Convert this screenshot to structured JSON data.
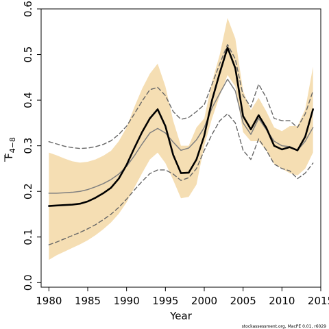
{
  "chart_data": {
    "type": "line",
    "xlabel": "Year",
    "ylabel": "F",
    "ylabel_subscript": "4−8",
    "xlim": [
      1979,
      2015
    ],
    "ylim": [
      -0.01,
      0.6
    ],
    "x_ticks": [
      1980,
      1985,
      1990,
      1995,
      2000,
      2005,
      2010,
      2015
    ],
    "x_tick_labels": [
      "1980",
      "1985",
      "1990",
      "1995",
      "2000",
      "2005",
      "2010",
      "2015"
    ],
    "y_ticks": [
      0.0,
      0.1,
      0.2,
      0.3,
      0.4,
      0.5,
      0.6
    ],
    "y_tick_labels": [
      "0.0",
      "0.1",
      "0.2",
      "0.3",
      "0.4",
      "0.5",
      "0.6"
    ],
    "grid": false,
    "legend": "none",
    "x": [
      1980,
      1981,
      1982,
      1983,
      1984,
      1985,
      1986,
      1987,
      1988,
      1989,
      1990,
      1991,
      1992,
      1993,
      1994,
      1995,
      1996,
      1997,
      1998,
      1999,
      2000,
      2001,
      2002,
      2003,
      2004,
      2005,
      2006,
      2007,
      2008,
      2009,
      2010,
      2011,
      2012,
      2013,
      2014
    ],
    "series": [
      {
        "role": "estimate",
        "color": "#000000",
        "style": "solid-thick",
        "values": [
          0.168,
          0.169,
          0.17,
          0.171,
          0.173,
          0.178,
          0.186,
          0.196,
          0.208,
          0.228,
          0.258,
          0.295,
          0.33,
          0.36,
          0.38,
          0.343,
          0.28,
          0.24,
          0.241,
          0.27,
          0.322,
          0.4,
          0.46,
          0.515,
          0.47,
          0.365,
          0.336,
          0.367,
          0.339,
          0.3,
          0.292,
          0.297,
          0.29,
          0.32,
          0.38
        ]
      },
      {
        "role": "alternative estimate",
        "color": "#7f7f7f",
        "style": "solid",
        "values": [
          0.196,
          0.196,
          0.197,
          0.198,
          0.2,
          0.204,
          0.21,
          0.217,
          0.226,
          0.238,
          0.255,
          0.278,
          0.304,
          0.328,
          0.338,
          0.328,
          0.308,
          0.29,
          0.295,
          0.313,
          0.34,
          0.383,
          0.415,
          0.446,
          0.42,
          0.35,
          0.325,
          0.36,
          0.335,
          0.31,
          0.3,
          0.298,
          0.29,
          0.31,
          0.34
        ]
      },
      {
        "role": "alternative upper bound",
        "color": "#666666",
        "style": "dashed",
        "values": [
          0.309,
          0.304,
          0.299,
          0.296,
          0.294,
          0.295,
          0.298,
          0.303,
          0.311,
          0.325,
          0.343,
          0.37,
          0.398,
          0.423,
          0.428,
          0.41,
          0.375,
          0.358,
          0.362,
          0.375,
          0.39,
          0.435,
          0.48,
          0.522,
          0.49,
          0.41,
          0.385,
          0.435,
          0.405,
          0.36,
          0.355,
          0.355,
          0.34,
          0.37,
          0.42
        ]
      },
      {
        "role": "alternative lower bound",
        "color": "#666666",
        "style": "dashed",
        "values": [
          0.083,
          0.089,
          0.096,
          0.103,
          0.11,
          0.118,
          0.127,
          0.138,
          0.15,
          0.165,
          0.183,
          0.203,
          0.222,
          0.239,
          0.247,
          0.247,
          0.238,
          0.224,
          0.23,
          0.25,
          0.29,
          0.325,
          0.355,
          0.37,
          0.35,
          0.29,
          0.27,
          0.315,
          0.29,
          0.26,
          0.25,
          0.245,
          0.228,
          0.24,
          0.262
        ]
      }
    ],
    "band": {
      "role": "confidence interval",
      "color": "#f5deb3",
      "lower": [
        0.05,
        0.06,
        0.068,
        0.076,
        0.084,
        0.093,
        0.104,
        0.117,
        0.132,
        0.151,
        0.176,
        0.208,
        0.24,
        0.27,
        0.285,
        0.262,
        0.225,
        0.185,
        0.188,
        0.215,
        0.3,
        0.36,
        0.41,
        0.455,
        0.43,
        0.33,
        0.31,
        0.31,
        0.29,
        0.26,
        0.25,
        0.24,
        0.235,
        0.25,
        0.285
      ],
      "upper": [
        0.285,
        0.279,
        0.272,
        0.266,
        0.263,
        0.265,
        0.27,
        0.278,
        0.289,
        0.31,
        0.34,
        0.385,
        0.425,
        0.458,
        0.48,
        0.43,
        0.355,
        0.3,
        0.3,
        0.34,
        0.36,
        0.44,
        0.5,
        0.58,
        0.535,
        0.42,
        0.378,
        0.405,
        0.375,
        0.34,
        0.332,
        0.343,
        0.343,
        0.38,
        0.473
      ]
    }
  },
  "footer": {
    "credit": "stockassessment.org, MacPE 0.01, r6029"
  }
}
